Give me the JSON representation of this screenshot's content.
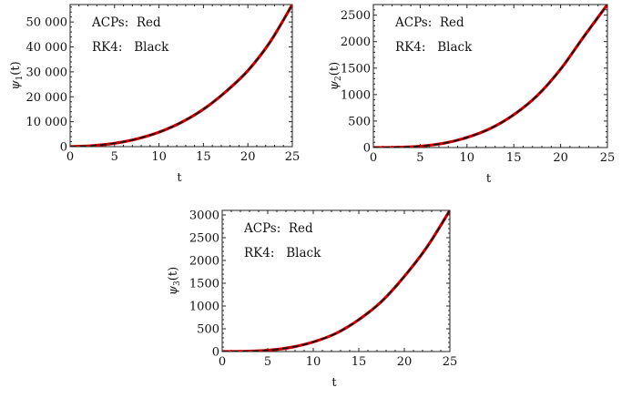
{
  "chart_data": [
    {
      "type": "line",
      "title": "",
      "xlabel": "t",
      "ylabel": "ψ1(t)",
      "ylabel_base": "ψ",
      "ylabel_sub": "1",
      "ylabel_tail": "(t)",
      "xlim": [
        0,
        25
      ],
      "ylim": [
        0,
        57000
      ],
      "xticks": [
        0,
        5,
        10,
        15,
        20,
        25
      ],
      "yticks": [
        0,
        10000,
        20000,
        30000,
        40000,
        50000
      ],
      "ytick_labels": [
        "0",
        "10 000",
        "20 000",
        "30 000",
        "40 000",
        "50 000"
      ],
      "series": [
        {
          "name": "ACPs",
          "color": "#cc0000",
          "style": "solid",
          "x": [
            0,
            2.5,
            5,
            7.5,
            10,
            12.5,
            15,
            17.5,
            20,
            22.5,
            25
          ],
          "y": [
            0,
            400,
            1350,
            3100,
            5800,
            9700,
            15000,
            22000,
            30500,
            42000,
            57000
          ]
        },
        {
          "name": "RK4",
          "color": "#111111",
          "style": "dashed",
          "x": [
            0,
            2.5,
            5,
            7.5,
            10,
            12.5,
            15,
            17.5,
            20,
            22.5,
            25
          ],
          "y": [
            0,
            400,
            1350,
            3100,
            5800,
            9700,
            15000,
            22000,
            30500,
            42000,
            57000
          ]
        }
      ],
      "annotations": [
        "ACPs:  Red",
        "RK4:   Black"
      ]
    },
    {
      "type": "line",
      "title": "",
      "xlabel": "t",
      "ylabel": "ψ2(t)",
      "ylabel_base": "ψ",
      "ylabel_sub": "2",
      "ylabel_tail": "(t)",
      "xlim": [
        0,
        25
      ],
      "ylim": [
        0,
        2700
      ],
      "xticks": [
        0,
        5,
        10,
        15,
        20,
        25
      ],
      "yticks": [
        0,
        500,
        1000,
        1500,
        2000,
        2500
      ],
      "ytick_labels": [
        "0",
        "500",
        "1000",
        "1500",
        "2000",
        "2500"
      ],
      "series": [
        {
          "name": "ACPs",
          "color": "#cc0000",
          "style": "solid",
          "x": [
            0,
            2.5,
            5,
            7.5,
            10,
            12.5,
            15,
            17.5,
            20,
            22.5,
            25
          ],
          "y": [
            0,
            5,
            25,
            80,
            190,
            360,
            620,
            980,
            1480,
            2100,
            2700
          ]
        },
        {
          "name": "RK4",
          "color": "#111111",
          "style": "dashed",
          "x": [
            0,
            2.5,
            5,
            7.5,
            10,
            12.5,
            15,
            17.5,
            20,
            22.5,
            25
          ],
          "y": [
            0,
            5,
            25,
            80,
            190,
            360,
            620,
            980,
            1480,
            2100,
            2700
          ]
        }
      ],
      "annotations": [
        "ACPs:  Red",
        "RK4:   Black"
      ]
    },
    {
      "type": "line",
      "title": "",
      "xlabel": "t",
      "ylabel": "ψ3(t)",
      "ylabel_base": "ψ",
      "ylabel_sub": "3",
      "ylabel_tail": "(t)",
      "xlim": [
        0,
        25
      ],
      "ylim": [
        0,
        3100
      ],
      "xticks": [
        0,
        5,
        10,
        15,
        20,
        25
      ],
      "yticks": [
        0,
        500,
        1000,
        1500,
        2000,
        2500,
        3000
      ],
      "ytick_labels": [
        "0",
        "500",
        "1000",
        "1500",
        "2000",
        "2500",
        "3000"
      ],
      "series": [
        {
          "name": "ACPs",
          "color": "#cc0000",
          "style": "solid",
          "x": [
            0,
            2.5,
            5,
            7.5,
            10,
            12.5,
            15,
            17.5,
            20,
            22.5,
            25
          ],
          "y": [
            0,
            5,
            28,
            90,
            210,
            400,
            700,
            1100,
            1650,
            2300,
            3100
          ]
        },
        {
          "name": "RK4",
          "color": "#111111",
          "style": "dashed",
          "x": [
            0,
            2.5,
            5,
            7.5,
            10,
            12.5,
            15,
            17.5,
            20,
            22.5,
            25
          ],
          "y": [
            0,
            5,
            28,
            90,
            210,
            400,
            700,
            1100,
            1650,
            2300,
            3100
          ]
        }
      ],
      "annotations": [
        "ACPs:  Red",
        "RK4:   Black"
      ]
    }
  ]
}
